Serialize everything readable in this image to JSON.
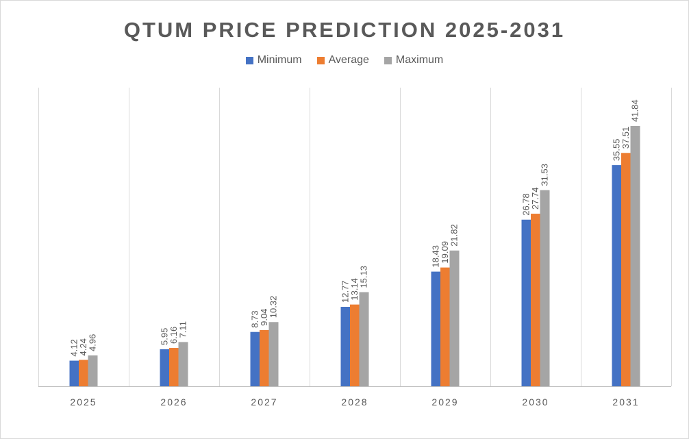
{
  "chart_data": {
    "type": "bar",
    "title": "QTUM PRICE PREDICTION 2025-2031",
    "categories": [
      "2025",
      "2026",
      "2027",
      "2028",
      "2029",
      "2030",
      "2031"
    ],
    "series": [
      {
        "name": "Minimum",
        "color": "#4472c4",
        "values": [
          4.12,
          5.95,
          8.73,
          12.77,
          18.43,
          26.78,
          35.55
        ]
      },
      {
        "name": "Average",
        "color": "#ed7d31",
        "values": [
          4.24,
          6.16,
          9.04,
          13.14,
          19.09,
          27.74,
          37.51
        ]
      },
      {
        "name": "Maximum",
        "color": "#a5a5a5",
        "values": [
          4.96,
          7.11,
          10.32,
          15.13,
          21.82,
          31.53,
          41.84
        ]
      }
    ],
    "data_labels": [
      [
        "4.12",
        "4.24",
        "4.96"
      ],
      [
        "5.95",
        "6.16",
        "7.11"
      ],
      [
        "8.73",
        "9.04",
        "10.32"
      ],
      [
        "12.77",
        "13.14",
        "15.13"
      ],
      [
        "18.43",
        "19.09",
        "21.82"
      ],
      [
        "26.78",
        "27.74",
        "31.53"
      ],
      [
        "35.55",
        "37.51",
        "41.84"
      ]
    ],
    "xlabel": "",
    "ylabel": "",
    "ylim": [
      0,
      48
    ],
    "grid": "vertical category separators",
    "legend_position": "top"
  }
}
